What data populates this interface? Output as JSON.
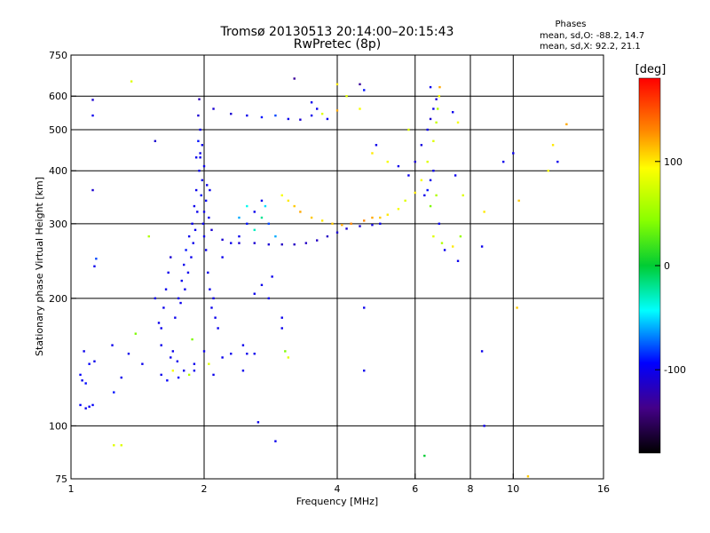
{
  "chart_data": {
    "type": "scatter",
    "title": "Tromsø 20130513 20:14:00–20:15:43",
    "subtitle": "RwPretec (8p)",
    "xlabel": "Frequency [MHz]",
    "ylabel": "Stationary phase Virtual Height [km]",
    "x_scale": "log",
    "y_scale": "log",
    "xlim": [
      1,
      16
    ],
    "ylim": [
      75,
      750
    ],
    "x_ticks": [
      1,
      2,
      4,
      6,
      8,
      10,
      16
    ],
    "x_tick_labels": [
      "1",
      "2",
      "4",
      "6",
      "8",
      "10",
      "16"
    ],
    "y_ticks": [
      75,
      100,
      200,
      300,
      400,
      500,
      600,
      750
    ],
    "y_tick_labels": [
      "75",
      "100",
      "200",
      "300",
      "400",
      "500",
      "600",
      "750"
    ],
    "grid": true,
    "stats": {
      "title": "Phases",
      "line_o": "mean, sd,O:  -88.2, 14.7",
      "line_x": "mean, sd,X:  92.2, 21.1"
    },
    "colorbar": {
      "label": "[deg]",
      "range": [
        -180,
        180
      ],
      "ticks": [
        100,
        0,
        -100
      ],
      "tick_labels": [
        "100",
        "0",
        "-100"
      ]
    },
    "series": [
      {
        "points": [
          [
            1.05,
            112,
            -95
          ],
          [
            1.08,
            110,
            -100
          ],
          [
            1.1,
            111,
            -98
          ],
          [
            1.12,
            112,
            -95
          ],
          [
            1.06,
            128,
            -100
          ],
          [
            1.05,
            132,
            -95
          ],
          [
            1.08,
            126,
            -92
          ],
          [
            1.07,
            150,
            -100
          ],
          [
            1.1,
            140,
            -95
          ],
          [
            1.13,
            142,
            -100
          ],
          [
            1.12,
            588,
            -110
          ],
          [
            1.12,
            540,
            -100
          ],
          [
            1.12,
            360,
            -110
          ],
          [
            1.14,
            248,
            -80
          ],
          [
            1.13,
            238,
            -100
          ],
          [
            1.37,
            650,
            80
          ],
          [
            1.24,
            155,
            -100
          ],
          [
            1.35,
            148,
            -100
          ],
          [
            1.3,
            130,
            -100
          ],
          [
            1.25,
            120,
            -90
          ],
          [
            1.4,
            165,
            40
          ],
          [
            1.45,
            140,
            -100
          ],
          [
            1.5,
            280,
            60
          ],
          [
            1.55,
            470,
            -110
          ],
          [
            1.6,
            132,
            -100
          ],
          [
            1.65,
            128,
            -95
          ],
          [
            1.7,
            150,
            -100
          ],
          [
            1.72,
            180,
            -100
          ],
          [
            1.75,
            200,
            -100
          ],
          [
            1.78,
            220,
            -100
          ],
          [
            1.8,
            240,
            -100
          ],
          [
            1.82,
            260,
            -90
          ],
          [
            1.85,
            280,
            -100
          ],
          [
            1.88,
            300,
            -100
          ],
          [
            1.9,
            330,
            -100
          ],
          [
            1.92,
            360,
            -100
          ],
          [
            1.95,
            400,
            -100
          ],
          [
            1.96,
            430,
            -100
          ],
          [
            1.98,
            460,
            -100
          ],
          [
            1.96,
            500,
            -100
          ],
          [
            1.94,
            540,
            -110
          ],
          [
            1.95,
            590,
            -120
          ],
          [
            1.93,
            320,
            -100
          ],
          [
            1.97,
            350,
            -90
          ],
          [
            2.0,
            320,
            -100
          ],
          [
            1.99,
            300,
            -100
          ],
          [
            2.02,
            340,
            -95
          ],
          [
            2.05,
            310,
            -100
          ],
          [
            2.08,
            290,
            -110
          ],
          [
            2.0,
            280,
            -100
          ],
          [
            2.1,
            200,
            -100
          ],
          [
            2.12,
            180,
            -100
          ],
          [
            2.15,
            170,
            -100
          ],
          [
            2.0,
            150,
            -100
          ],
          [
            1.9,
            140,
            -100
          ],
          [
            1.8,
            135,
            -100
          ],
          [
            2.2,
            145,
            -100
          ],
          [
            2.3,
            148,
            -100
          ],
          [
            2.5,
            148,
            -100
          ],
          [
            2.6,
            148,
            -100
          ],
          [
            1.75,
            130,
            -95
          ],
          [
            1.85,
            132,
            60
          ],
          [
            1.88,
            160,
            40
          ],
          [
            1.7,
            135,
            90
          ],
          [
            2.05,
            140,
            80
          ],
          [
            1.6,
            170,
            -100
          ],
          [
            1.62,
            190,
            -100
          ],
          [
            1.64,
            210,
            -100
          ],
          [
            1.66,
            230,
            -100
          ],
          [
            1.68,
            250,
            -110
          ],
          [
            2.2,
            250,
            -100
          ],
          [
            2.3,
            270,
            -100
          ],
          [
            2.4,
            280,
            -100
          ],
          [
            2.5,
            300,
            -90
          ],
          [
            2.6,
            320,
            -100
          ],
          [
            2.7,
            340,
            -100
          ],
          [
            2.8,
            300,
            -80
          ],
          [
            2.9,
            280,
            -60
          ],
          [
            2.2,
            275,
            -110
          ],
          [
            2.4,
            270,
            -110
          ],
          [
            2.6,
            270,
            -110
          ],
          [
            2.8,
            268,
            -110
          ],
          [
            3.0,
            268,
            -115
          ],
          [
            3.2,
            268,
            -115
          ],
          [
            3.4,
            270,
            -115
          ],
          [
            3.6,
            274,
            -115
          ],
          [
            3.8,
            280,
            -115
          ],
          [
            4.0,
            286,
            -110
          ],
          [
            4.2,
            292,
            -110
          ],
          [
            4.5,
            296,
            -110
          ],
          [
            4.8,
            298,
            -105
          ],
          [
            5.0,
            300,
            -100
          ],
          [
            3.0,
            350,
            90
          ],
          [
            3.1,
            340,
            100
          ],
          [
            3.2,
            330,
            110
          ],
          [
            3.3,
            320,
            120
          ],
          [
            3.5,
            310,
            110
          ],
          [
            3.7,
            305,
            100
          ],
          [
            3.9,
            300,
            110
          ],
          [
            4.1,
            298,
            120
          ],
          [
            4.3,
            300,
            130
          ],
          [
            4.6,
            305,
            130
          ],
          [
            4.8,
            310,
            120
          ],
          [
            5.0,
            310,
            110
          ],
          [
            5.2,
            315,
            100
          ],
          [
            5.5,
            325,
            90
          ],
          [
            5.7,
            340,
            80
          ],
          [
            6.0,
            355,
            100
          ],
          [
            6.2,
            380,
            90
          ],
          [
            6.4,
            420,
            80
          ],
          [
            6.6,
            470,
            80
          ],
          [
            6.7,
            520,
            70
          ],
          [
            6.75,
            560,
            60
          ],
          [
            6.8,
            600,
            90
          ],
          [
            6.82,
            630,
            120
          ],
          [
            5.8,
            390,
            -100
          ],
          [
            6.0,
            420,
            -110
          ],
          [
            6.2,
            460,
            -105
          ],
          [
            6.4,
            500,
            -100
          ],
          [
            6.5,
            530,
            -110
          ],
          [
            6.6,
            560,
            -100
          ],
          [
            6.7,
            590,
            -110
          ],
          [
            6.6,
            400,
            -100
          ],
          [
            6.5,
            380,
            -100
          ],
          [
            6.4,
            360,
            -90
          ],
          [
            6.3,
            350,
            -100
          ],
          [
            6.5,
            330,
            40
          ],
          [
            6.7,
            350,
            60
          ],
          [
            6.8,
            300,
            -100
          ],
          [
            6.6,
            280,
            80
          ],
          [
            6.9,
            270,
            60
          ],
          [
            2.1,
            560,
            -110
          ],
          [
            2.3,
            545,
            -110
          ],
          [
            2.5,
            540,
            -100
          ],
          [
            2.7,
            535,
            -90
          ],
          [
            2.9,
            540,
            -80
          ],
          [
            3.1,
            530,
            -100
          ],
          [
            3.3,
            528,
            -110
          ],
          [
            3.5,
            540,
            -100
          ],
          [
            3.6,
            560,
            -100
          ],
          [
            3.7,
            545,
            80
          ],
          [
            3.2,
            660,
            -130
          ],
          [
            3.5,
            580,
            -100
          ],
          [
            4.0,
            640,
            100
          ],
          [
            4.2,
            600,
            80
          ],
          [
            4.5,
            640,
            -130
          ],
          [
            4.6,
            620,
            -90
          ],
          [
            4.5,
            560,
            90
          ],
          [
            4.0,
            555,
            120
          ],
          [
            3.8,
            530,
            -100
          ],
          [
            4.8,
            440,
            100
          ],
          [
            4.9,
            460,
            -100
          ],
          [
            5.2,
            420,
            90
          ],
          [
            5.5,
            410,
            -100
          ],
          [
            5.8,
            500,
            80
          ],
          [
            6.5,
            630,
            -100
          ],
          [
            7.3,
            550,
            -100
          ],
          [
            7.5,
            520,
            90
          ],
          [
            7.4,
            390,
            -100
          ],
          [
            7.0,
            260,
            -100
          ],
          [
            7.3,
            265,
            100
          ],
          [
            7.5,
            245,
            -100
          ],
          [
            7.6,
            280,
            50
          ],
          [
            7.7,
            350,
            80
          ],
          [
            8.5,
            265,
            -100
          ],
          [
            8.6,
            320,
            100
          ],
          [
            8.5,
            150,
            -100
          ],
          [
            8.6,
            100,
            -100
          ],
          [
            9.5,
            420,
            -100
          ],
          [
            10,
            440,
            -100
          ],
          [
            10.3,
            340,
            110
          ],
          [
            10.2,
            190,
            110
          ],
          [
            10.8,
            76,
            110
          ],
          [
            12,
            400,
            90
          ],
          [
            12.6,
            420,
            -100
          ],
          [
            13.2,
            515,
            120
          ],
          [
            12.3,
            460,
            100
          ],
          [
            4.6,
            135,
            -100
          ],
          [
            4.6,
            190,
            -100
          ],
          [
            2.8,
            200,
            -100
          ],
          [
            2.9,
            92,
            -100
          ],
          [
            2.65,
            102,
            -100
          ],
          [
            1.25,
            90,
            80
          ],
          [
            1.3,
            90,
            80
          ],
          [
            6.3,
            85,
            0
          ],
          [
            2.45,
            135,
            -100
          ],
          [
            2.45,
            155,
            -100
          ],
          [
            3.0,
            170,
            -100
          ],
          [
            3.1,
            145,
            80
          ],
          [
            3.05,
            150,
            40
          ],
          [
            3.0,
            180,
            -100
          ],
          [
            2.85,
            225,
            -100
          ],
          [
            2.7,
            215,
            -100
          ],
          [
            2.6,
            205,
            -100
          ],
          [
            2.0,
            410,
            -100
          ],
          [
            1.98,
            380,
            -100
          ],
          [
            1.96,
            440,
            -100
          ],
          [
            1.94,
            470,
            -90
          ],
          [
            1.92,
            430,
            -100
          ],
          [
            2.03,
            370,
            -100
          ],
          [
            2.06,
            360,
            -100
          ],
          [
            1.55,
            200,
            -100
          ],
          [
            1.58,
            175,
            -100
          ],
          [
            1.6,
            155,
            -100
          ],
          [
            1.68,
            145,
            -100
          ],
          [
            1.74,
            142,
            -100
          ],
          [
            1.9,
            135,
            -100
          ],
          [
            2.1,
            132,
            -100
          ],
          [
            1.77,
            195,
            -100
          ],
          [
            1.81,
            210,
            -100
          ],
          [
            1.84,
            230,
            -100
          ],
          [
            1.87,
            250,
            -100
          ],
          [
            1.89,
            270,
            -100
          ],
          [
            1.91,
            290,
            -100
          ],
          [
            2.02,
            260,
            -100
          ],
          [
            2.04,
            230,
            -100
          ],
          [
            2.06,
            210,
            -100
          ],
          [
            2.08,
            190,
            -100
          ],
          [
            2.4,
            310,
            -60
          ],
          [
            2.5,
            330,
            -40
          ],
          [
            2.6,
            290,
            -30
          ],
          [
            2.7,
            310,
            -20
          ],
          [
            2.75,
            330,
            -50
          ]
        ]
      }
    ]
  }
}
